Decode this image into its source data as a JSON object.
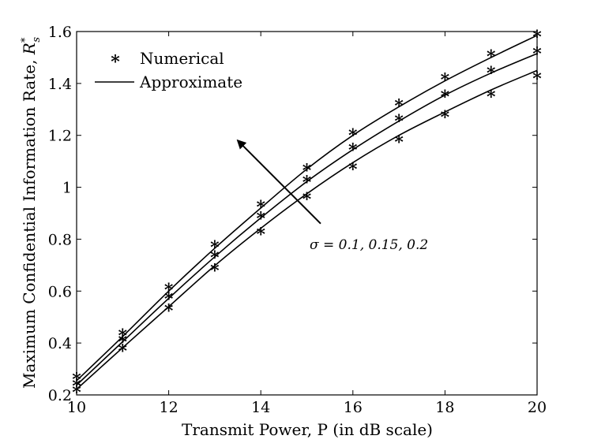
{
  "chart_data": {
    "type": "line",
    "title": "",
    "xlabel": "Transmit Power, P (in dB scale)",
    "ylabel": "Maximum Confidential Information Rate, R*s",
    "xlim": [
      10,
      20
    ],
    "ylim": [
      0.2,
      1.6
    ],
    "xticks": [
      10,
      12,
      14,
      16,
      18,
      20
    ],
    "xtick_labels": [
      "10",
      "12",
      "14",
      "16",
      "18",
      "20"
    ],
    "yticks": [
      0.2,
      0.4,
      0.6,
      0.8,
      1.0,
      1.2,
      1.4,
      1.6
    ],
    "ytick_labels": [
      "0.2",
      "0.4",
      "0.6",
      "0.8",
      "1",
      "1.2",
      "1.4",
      "1.6"
    ],
    "grid": false,
    "legend_position": "top-left",
    "legend": [
      {
        "label": "Numerical",
        "marker": "*",
        "style": "marker"
      },
      {
        "label": "Approximate",
        "marker": "",
        "style": "line"
      }
    ],
    "x": [
      10,
      11,
      12,
      13,
      14,
      15,
      16,
      17,
      18,
      19,
      20
    ],
    "series": [
      {
        "name": "σ = 0.1",
        "numerical": [
          0.26,
          0.43,
          0.605,
          0.77,
          0.925,
          1.065,
          1.2,
          1.315,
          1.415,
          1.505,
          1.58
        ],
        "approximate": [
          0.255,
          0.425,
          0.6,
          0.765,
          0.92,
          1.07,
          1.2,
          1.31,
          1.41,
          1.5,
          1.585
        ]
      },
      {
        "name": "σ = 0.15",
        "numerical": [
          0.235,
          0.405,
          0.57,
          0.73,
          0.88,
          1.02,
          1.145,
          1.255,
          1.35,
          1.44,
          1.515
        ],
        "approximate": [
          0.238,
          0.405,
          0.572,
          0.732,
          0.882,
          1.022,
          1.145,
          1.255,
          1.355,
          1.44,
          1.515
        ]
      },
      {
        "name": "σ = 0.2",
        "numerical": [
          0.21,
          0.37,
          0.525,
          0.68,
          0.82,
          0.955,
          1.07,
          1.175,
          1.27,
          1.35,
          1.42
        ],
        "approximate": [
          0.222,
          0.382,
          0.54,
          0.698,
          0.842,
          0.975,
          1.095,
          1.2,
          1.29,
          1.375,
          1.45
        ]
      }
    ],
    "annotation": {
      "text": "σ = 0.1, 0.15, 0.2",
      "arrow_from": [
        15.3,
        0.86
      ],
      "arrow_to": [
        13.5,
        1.18
      ]
    }
  },
  "labels": {
    "marker_glyph": "*",
    "legend_numerical": "Numerical",
    "legend_approximate": "Approximate",
    "xlabel": "Transmit Power, P (in dB scale)",
    "ylabel_main": "Maximum Confidential Information Rate, ",
    "ylabel_sym": "R",
    "ylabel_sup": "*",
    "ylabel_sub": "s",
    "annotation": "σ = 0.1, 0.15, 0.2"
  }
}
